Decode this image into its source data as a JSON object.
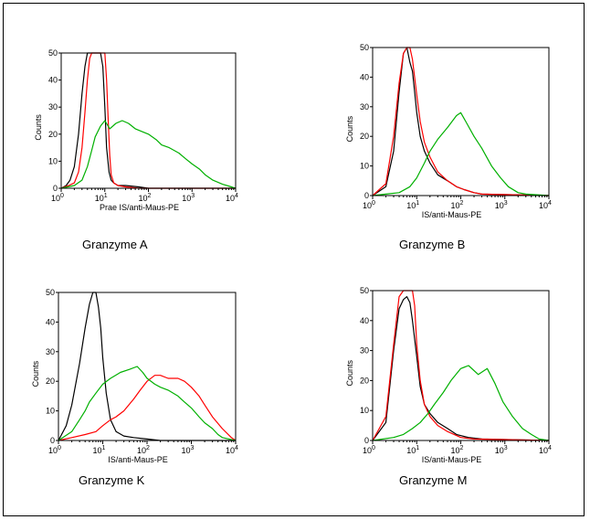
{
  "chart_data": [
    {
      "type": "line",
      "title": "Granzyme A",
      "xlabel": "Prae IS/anti-Maus-PE",
      "ylabel": "Counts",
      "x_scale": "log",
      "xlim": [
        1,
        10000
      ],
      "ylim": [
        0,
        50
      ],
      "x_ticks": [
        "10",
        "10",
        "10",
        "10",
        "10"
      ],
      "x_tick_exponents": [
        "0",
        "1",
        "2",
        "3",
        "4"
      ],
      "y_ticks": [
        "0",
        "10",
        "20",
        "30",
        "40",
        "50"
      ],
      "series": [
        {
          "color": "#000000",
          "points": [
            [
              1,
              0
            ],
            [
              1.3,
              1
            ],
            [
              1.6,
              3
            ],
            [
              2,
              8
            ],
            [
              2.5,
              20
            ],
            [
              3,
              35
            ],
            [
              3.5,
              45
            ],
            [
              4,
              50
            ],
            [
              8,
              50
            ],
            [
              9,
              45
            ],
            [
              10,
              30
            ],
            [
              11,
              15
            ],
            [
              12.5,
              6
            ],
            [
              14,
              3
            ],
            [
              16,
              2
            ],
            [
              20,
              1
            ],
            [
              30,
              1
            ],
            [
              60,
              0.5
            ],
            [
              100,
              0
            ],
            [
              10000,
              0
            ]
          ]
        },
        {
          "color": "#ff0000",
          "points": [
            [
              1,
              0
            ],
            [
              1.5,
              1
            ],
            [
              2,
              2
            ],
            [
              2.5,
              6
            ],
            [
              3,
              15
            ],
            [
              3.5,
              28
            ],
            [
              4,
              40
            ],
            [
              4.5,
              48
            ],
            [
              5,
              50
            ],
            [
              10,
              50
            ],
            [
              11,
              40
            ],
            [
              12,
              25
            ],
            [
              13,
              12
            ],
            [
              14,
              5
            ],
            [
              16,
              2
            ],
            [
              20,
              1
            ],
            [
              30,
              0.5
            ],
            [
              60,
              0
            ],
            [
              10000,
              0
            ]
          ]
        },
        {
          "color": "#00b000",
          "points": [
            [
              1,
              0
            ],
            [
              2,
              1
            ],
            [
              3,
              3
            ],
            [
              4,
              8
            ],
            [
              5,
              14
            ],
            [
              6,
              19
            ],
            [
              8,
              23
            ],
            [
              10,
              25
            ],
            [
              13,
              22
            ],
            [
              18,
              24
            ],
            [
              25,
              25
            ],
            [
              35,
              24
            ],
            [
              50,
              22
            ],
            [
              70,
              21
            ],
            [
              100,
              20
            ],
            [
              150,
              18
            ],
            [
              200,
              16
            ],
            [
              300,
              15
            ],
            [
              500,
              13
            ],
            [
              700,
              11
            ],
            [
              1000,
              9
            ],
            [
              1500,
              7
            ],
            [
              2000,
              5
            ],
            [
              3000,
              3
            ],
            [
              5000,
              1.5
            ],
            [
              8000,
              0.5
            ],
            [
              10000,
              0
            ]
          ]
        }
      ]
    },
    {
      "type": "line",
      "title": "Granzyme B",
      "xlabel": "IS/anti-Maus-PE",
      "ylabel": "Counts",
      "x_scale": "log",
      "xlim": [
        1,
        10000
      ],
      "ylim": [
        0,
        50
      ],
      "x_ticks": [
        "10",
        "10",
        "10",
        "10",
        "10"
      ],
      "x_tick_exponents": [
        "0",
        "1",
        "2",
        "3",
        "4"
      ],
      "y_ticks": [
        "0",
        "10",
        "20",
        "30",
        "40",
        "50"
      ],
      "series": [
        {
          "color": "#000000",
          "points": [
            [
              1,
              0
            ],
            [
              2,
              3
            ],
            [
              3,
              15
            ],
            [
              4,
              35
            ],
            [
              5,
              48
            ],
            [
              6,
              50
            ],
            [
              7,
              45
            ],
            [
              8,
              42
            ],
            [
              9,
              35
            ],
            [
              10,
              28
            ],
            [
              12,
              20
            ],
            [
              15,
              15
            ],
            [
              20,
              11
            ],
            [
              30,
              7
            ],
            [
              50,
              5
            ],
            [
              80,
              3
            ],
            [
              120,
              2
            ],
            [
              200,
              1
            ],
            [
              300,
              0.5
            ],
            [
              10000,
              0
            ]
          ]
        },
        {
          "color": "#ff0000",
          "points": [
            [
              1,
              0
            ],
            [
              2,
              4
            ],
            [
              3,
              20
            ],
            [
              4,
              38
            ],
            [
              5,
              48
            ],
            [
              6,
              50
            ],
            [
              7,
              50
            ],
            [
              8,
              46
            ],
            [
              10,
              34
            ],
            [
              12,
              25
            ],
            [
              15,
              18
            ],
            [
              20,
              13
            ],
            [
              30,
              8
            ],
            [
              50,
              5
            ],
            [
              80,
              3
            ],
            [
              120,
              2
            ],
            [
              200,
              1
            ],
            [
              300,
              0.5
            ],
            [
              10000,
              0
            ]
          ]
        },
        {
          "color": "#00b000",
          "points": [
            [
              1,
              0
            ],
            [
              2,
              0.5
            ],
            [
              4,
              1
            ],
            [
              7,
              3
            ],
            [
              10,
              6
            ],
            [
              15,
              11
            ],
            [
              20,
              15
            ],
            [
              30,
              19
            ],
            [
              50,
              23
            ],
            [
              80,
              27
            ],
            [
              100,
              28
            ],
            [
              130,
              25
            ],
            [
              200,
              20
            ],
            [
              300,
              16
            ],
            [
              500,
              10
            ],
            [
              800,
              6
            ],
            [
              1200,
              3
            ],
            [
              2000,
              1
            ],
            [
              3000,
              0.5
            ],
            [
              10000,
              0
            ]
          ]
        }
      ]
    },
    {
      "type": "line",
      "title": "Granzyme K",
      "xlabel": "IS/anti-Maus-PE",
      "ylabel": "Counts",
      "x_scale": "log",
      "xlim": [
        1,
        10000
      ],
      "ylim": [
        0,
        50
      ],
      "x_ticks": [
        "10",
        "10",
        "10",
        "10",
        "10"
      ],
      "x_tick_exponents": [
        "0",
        "1",
        "2",
        "3",
        "4"
      ],
      "y_ticks": [
        "0",
        "10",
        "20",
        "30",
        "40",
        "50"
      ],
      "series": [
        {
          "color": "#000000",
          "points": [
            [
              1,
              0
            ],
            [
              1.5,
              5
            ],
            [
              2,
              12
            ],
            [
              3,
              26
            ],
            [
              4,
              38
            ],
            [
              5,
              46
            ],
            [
              6,
              50
            ],
            [
              7,
              50
            ],
            [
              8,
              45
            ],
            [
              9,
              38
            ],
            [
              10,
              28
            ],
            [
              12,
              16
            ],
            [
              15,
              7
            ],
            [
              20,
              3
            ],
            [
              30,
              1.5
            ],
            [
              50,
              1
            ],
            [
              100,
              0.5
            ],
            [
              200,
              0
            ],
            [
              10000,
              0
            ]
          ]
        },
        {
          "color": "#ff0000",
          "points": [
            [
              1,
              0
            ],
            [
              2,
              1
            ],
            [
              4,
              2
            ],
            [
              7,
              3
            ],
            [
              10,
              5
            ],
            [
              15,
              7
            ],
            [
              20,
              8
            ],
            [
              30,
              10
            ],
            [
              50,
              14
            ],
            [
              70,
              17
            ],
            [
              100,
              20
            ],
            [
              150,
              22
            ],
            [
              200,
              22
            ],
            [
              300,
              21
            ],
            [
              500,
              21
            ],
            [
              700,
              20
            ],
            [
              1000,
              18
            ],
            [
              1500,
              15
            ],
            [
              2000,
              12
            ],
            [
              3000,
              8
            ],
            [
              5000,
              4
            ],
            [
              8000,
              1
            ],
            [
              10000,
              0
            ]
          ]
        },
        {
          "color": "#00b000",
          "points": [
            [
              1,
              0
            ],
            [
              2,
              3
            ],
            [
              3,
              7
            ],
            [
              4,
              10
            ],
            [
              5,
              13
            ],
            [
              7,
              16
            ],
            [
              10,
              19
            ],
            [
              15,
              21
            ],
            [
              25,
              23
            ],
            [
              40,
              24
            ],
            [
              60,
              25
            ],
            [
              80,
              23
            ],
            [
              100,
              21
            ],
            [
              150,
              19
            ],
            [
              200,
              18
            ],
            [
              300,
              17
            ],
            [
              500,
              15
            ],
            [
              700,
              13
            ],
            [
              1000,
              11
            ],
            [
              1500,
              8
            ],
            [
              2000,
              6
            ],
            [
              3000,
              4
            ],
            [
              4000,
              2
            ],
            [
              5000,
              1
            ],
            [
              10000,
              0
            ]
          ]
        }
      ]
    },
    {
      "type": "line",
      "title": "Granzyme M",
      "xlabel": "IS/anti-Maus-PE",
      "ylabel": "Counts",
      "x_scale": "log",
      "xlim": [
        1,
        10000
      ],
      "ylim": [
        0,
        50
      ],
      "x_ticks": [
        "10",
        "10",
        "10",
        "10",
        "10"
      ],
      "x_tick_exponents": [
        "0",
        "1",
        "2",
        "3",
        "4"
      ],
      "y_ticks": [
        "0",
        "10",
        "20",
        "30",
        "40",
        "50"
      ],
      "series": [
        {
          "color": "#000000",
          "points": [
            [
              1,
              0
            ],
            [
              2,
              6
            ],
            [
              3,
              30
            ],
            [
              4,
              44
            ],
            [
              5,
              47
            ],
            [
              6,
              48
            ],
            [
              7,
              46
            ],
            [
              8,
              40
            ],
            [
              10,
              28
            ],
            [
              12,
              18
            ],
            [
              15,
              12
            ],
            [
              20,
              9
            ],
            [
              30,
              6
            ],
            [
              50,
              4
            ],
            [
              80,
              2
            ],
            [
              150,
              1
            ],
            [
              300,
              0.5
            ],
            [
              10000,
              0
            ]
          ]
        },
        {
          "color": "#ff0000",
          "points": [
            [
              1,
              0
            ],
            [
              2,
              8
            ],
            [
              3,
              32
            ],
            [
              4,
              48
            ],
            [
              5,
              50
            ],
            [
              8,
              50
            ],
            [
              9,
              45
            ],
            [
              10,
              32
            ],
            [
              12,
              20
            ],
            [
              15,
              12
            ],
            [
              20,
              8
            ],
            [
              30,
              5
            ],
            [
              50,
              3
            ],
            [
              100,
              1
            ],
            [
              200,
              0.5
            ],
            [
              10000,
              0
            ]
          ]
        },
        {
          "color": "#00b000",
          "points": [
            [
              1,
              0
            ],
            [
              3,
              1
            ],
            [
              5,
              2
            ],
            [
              8,
              4
            ],
            [
              12,
              6
            ],
            [
              18,
              9
            ],
            [
              25,
              12
            ],
            [
              40,
              16
            ],
            [
              60,
              20
            ],
            [
              100,
              24
            ],
            [
              150,
              25
            ],
            [
              250,
              22
            ],
            [
              400,
              24
            ],
            [
              600,
              19
            ],
            [
              900,
              13
            ],
            [
              1500,
              8
            ],
            [
              2500,
              4
            ],
            [
              4000,
              2
            ],
            [
              6000,
              0.5
            ],
            [
              10000,
              0
            ]
          ]
        }
      ]
    }
  ]
}
